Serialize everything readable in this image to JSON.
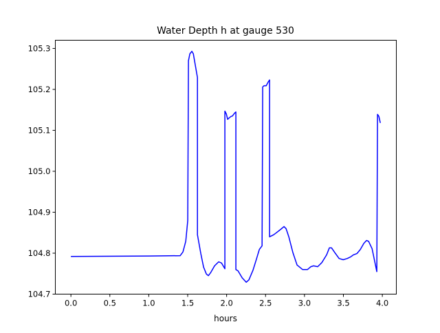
{
  "chart_data": {
    "type": "line",
    "title": "Water Depth h at gauge 530",
    "xlabel": "hours",
    "ylabel": "",
    "xlim": [
      -0.2,
      4.18
    ],
    "ylim": [
      104.7,
      105.32
    ],
    "xticks": [
      0.0,
      0.5,
      1.0,
      1.5,
      2.0,
      2.5,
      3.0,
      3.5,
      4.0
    ],
    "xtick_labels": [
      "0.0",
      "0.5",
      "1.0",
      "1.5",
      "2.0",
      "2.5",
      "3.0",
      "3.5",
      "4.0"
    ],
    "yticks": [
      104.7,
      104.8,
      104.9,
      105.0,
      105.1,
      105.2,
      105.3
    ],
    "ytick_labels": [
      "104.7",
      "104.8",
      "104.9",
      "105.0",
      "105.1",
      "105.2",
      "105.3"
    ],
    "grid": false,
    "series": [
      {
        "name": "h",
        "color": "#0000ff",
        "x": [
          0,
          1.0,
          1.404,
          1.439,
          1.475,
          1.501,
          1.51,
          1.528,
          1.554,
          1.572,
          1.625,
          1.625,
          1.669,
          1.704,
          1.74,
          1.766,
          1.793,
          1.845,
          1.898,
          1.934,
          1.978,
          1.978,
          1.996,
          2.013,
          2.031,
          2.057,
          2.075,
          2.102,
          2.119,
          2.119,
          2.146,
          2.199,
          2.252,
          2.287,
          2.34,
          2.384,
          2.42,
          2.455,
          2.463,
          2.481,
          2.508,
          2.534,
          2.552,
          2.552,
          2.605,
          2.64,
          2.693,
          2.737,
          2.764,
          2.799,
          2.852,
          2.905,
          2.976,
          3.038,
          3.082,
          3.117,
          3.17,
          3.223,
          3.285,
          3.32,
          3.347,
          3.391,
          3.444,
          3.497,
          3.55,
          3.594,
          3.629,
          3.673,
          3.717,
          3.762,
          3.797,
          3.823,
          3.868,
          3.929,
          3.938,
          3.956,
          3.974
        ],
        "y": [
          104.792,
          104.793,
          104.794,
          104.803,
          104.829,
          104.88,
          105.27,
          105.287,
          105.293,
          105.287,
          105.229,
          104.845,
          104.799,
          104.766,
          104.749,
          104.745,
          104.752,
          104.769,
          104.779,
          104.776,
          104.762,
          105.147,
          105.14,
          105.127,
          105.13,
          105.134,
          105.135,
          105.142,
          105.145,
          104.76,
          104.757,
          104.74,
          104.729,
          104.735,
          104.759,
          104.786,
          104.809,
          104.818,
          105.206,
          105.209,
          105.209,
          105.218,
          105.223,
          104.84,
          104.845,
          104.85,
          104.858,
          104.865,
          104.86,
          104.84,
          104.801,
          104.771,
          104.76,
          104.76,
          104.767,
          104.769,
          104.767,
          104.777,
          104.796,
          104.813,
          104.813,
          104.801,
          104.787,
          104.784,
          104.787,
          104.791,
          104.796,
          104.799,
          104.809,
          104.824,
          104.831,
          104.829,
          104.811,
          104.755,
          105.139,
          105.134,
          105.118
        ]
      }
    ]
  }
}
